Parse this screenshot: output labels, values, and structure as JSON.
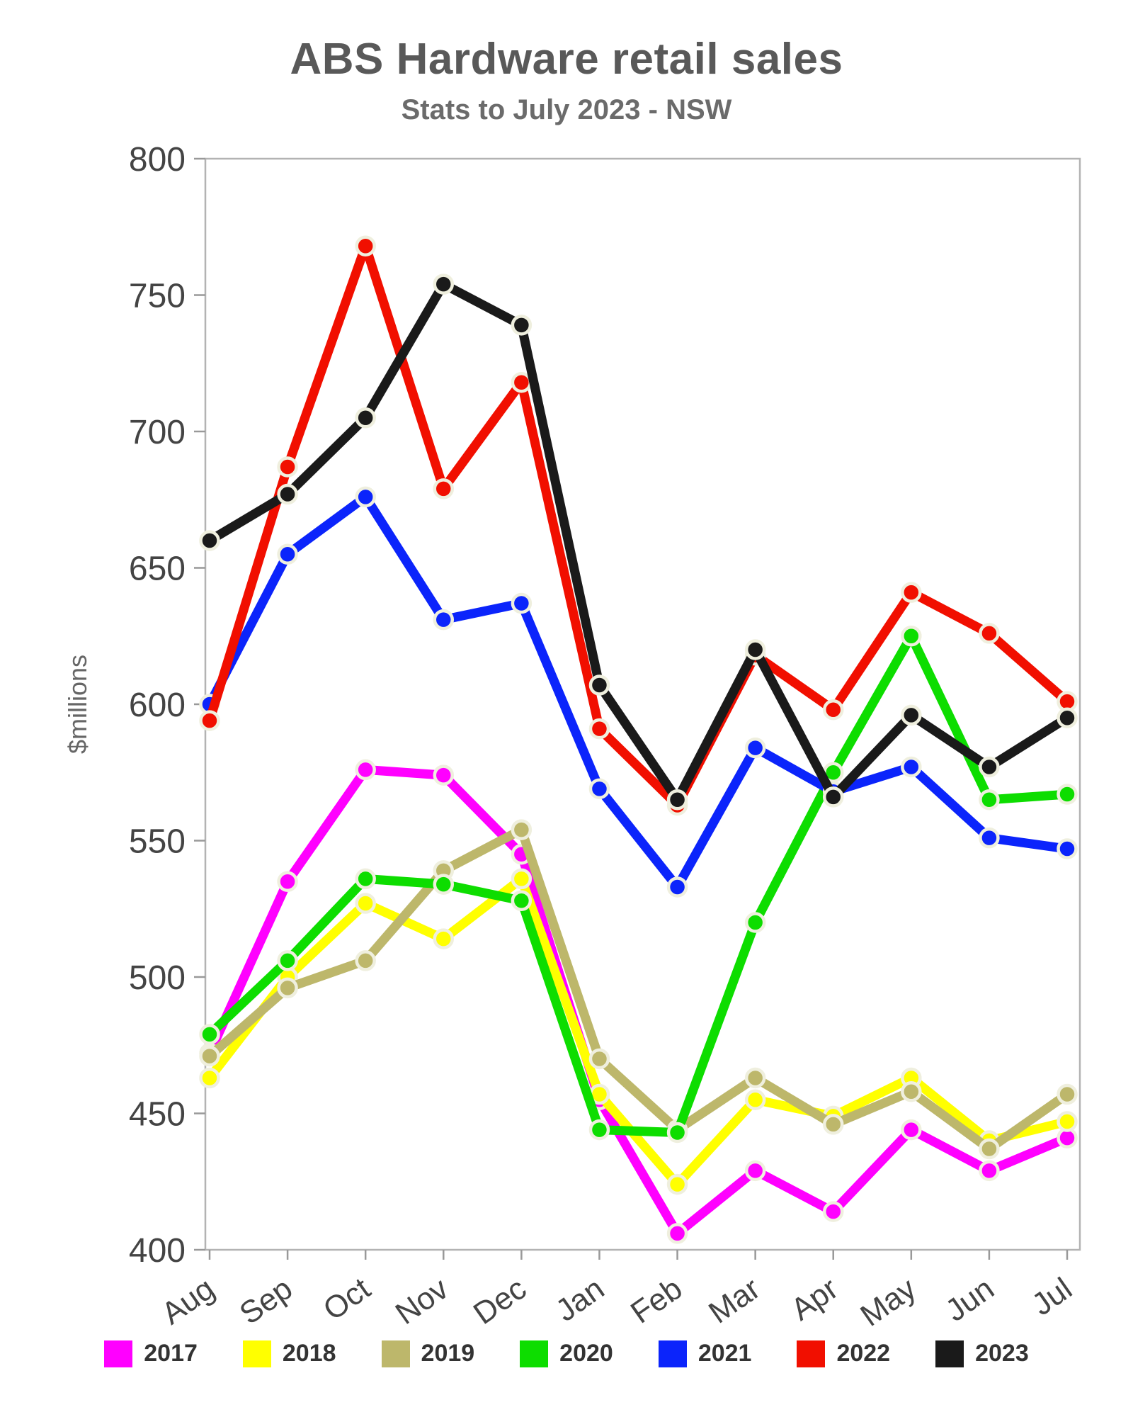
{
  "title": "ABS Hardware retail sales",
  "subtitle": "Stats to July 2023 - NSW",
  "chart_data": {
    "type": "line",
    "title": "ABS Hardware retail sales",
    "subtitle": "Stats to July 2023 - NSW",
    "categories": [
      "Aug",
      "Sep",
      "Oct",
      "Nov",
      "Dec",
      "Jan",
      "Feb",
      "Mar",
      "Apr",
      "May",
      "Jun",
      "Jul"
    ],
    "xlabel": "",
    "ylabel": "$millions",
    "ylim": [
      400,
      800
    ],
    "ytick_step": 50,
    "grid": false,
    "legend_position": "bottom",
    "marker": "circle",
    "marker_ring_color": "#efefde",
    "axis_border_color": "#b3b3b3",
    "series": [
      {
        "name": "2017",
        "color": "#ff00ff",
        "values": [
          472,
          535,
          576,
          574,
          545,
          455,
          406,
          429,
          414,
          444,
          429,
          441
        ]
      },
      {
        "name": "2018",
        "color": "#ffff00",
        "values": [
          463,
          500,
          527,
          514,
          536,
          457,
          424,
          455,
          449,
          463,
          440,
          447
        ]
      },
      {
        "name": "2019",
        "color": "#bdb76b",
        "values": [
          471,
          496,
          506,
          539,
          554,
          470,
          444,
          463,
          446,
          458,
          437,
          457
        ]
      },
      {
        "name": "2020",
        "color": "#0ddd00",
        "values": [
          479,
          506,
          536,
          534,
          528,
          444,
          443,
          520,
          575,
          625,
          565,
          567
        ]
      },
      {
        "name": "2021",
        "color": "#0b24fb",
        "values": [
          600,
          655,
          676,
          631,
          637,
          569,
          533,
          584,
          568,
          577,
          551,
          547
        ]
      },
      {
        "name": "2022",
        "color": "#f10f00",
        "values": [
          594,
          687,
          768,
          679,
          718,
          591,
          563,
          618,
          598,
          641,
          626,
          601
        ]
      },
      {
        "name": "2023",
        "color": "#1a1a1a",
        "values": [
          660,
          677,
          705,
          754,
          739,
          607,
          565,
          620,
          566,
          596,
          577,
          595
        ]
      }
    ]
  }
}
